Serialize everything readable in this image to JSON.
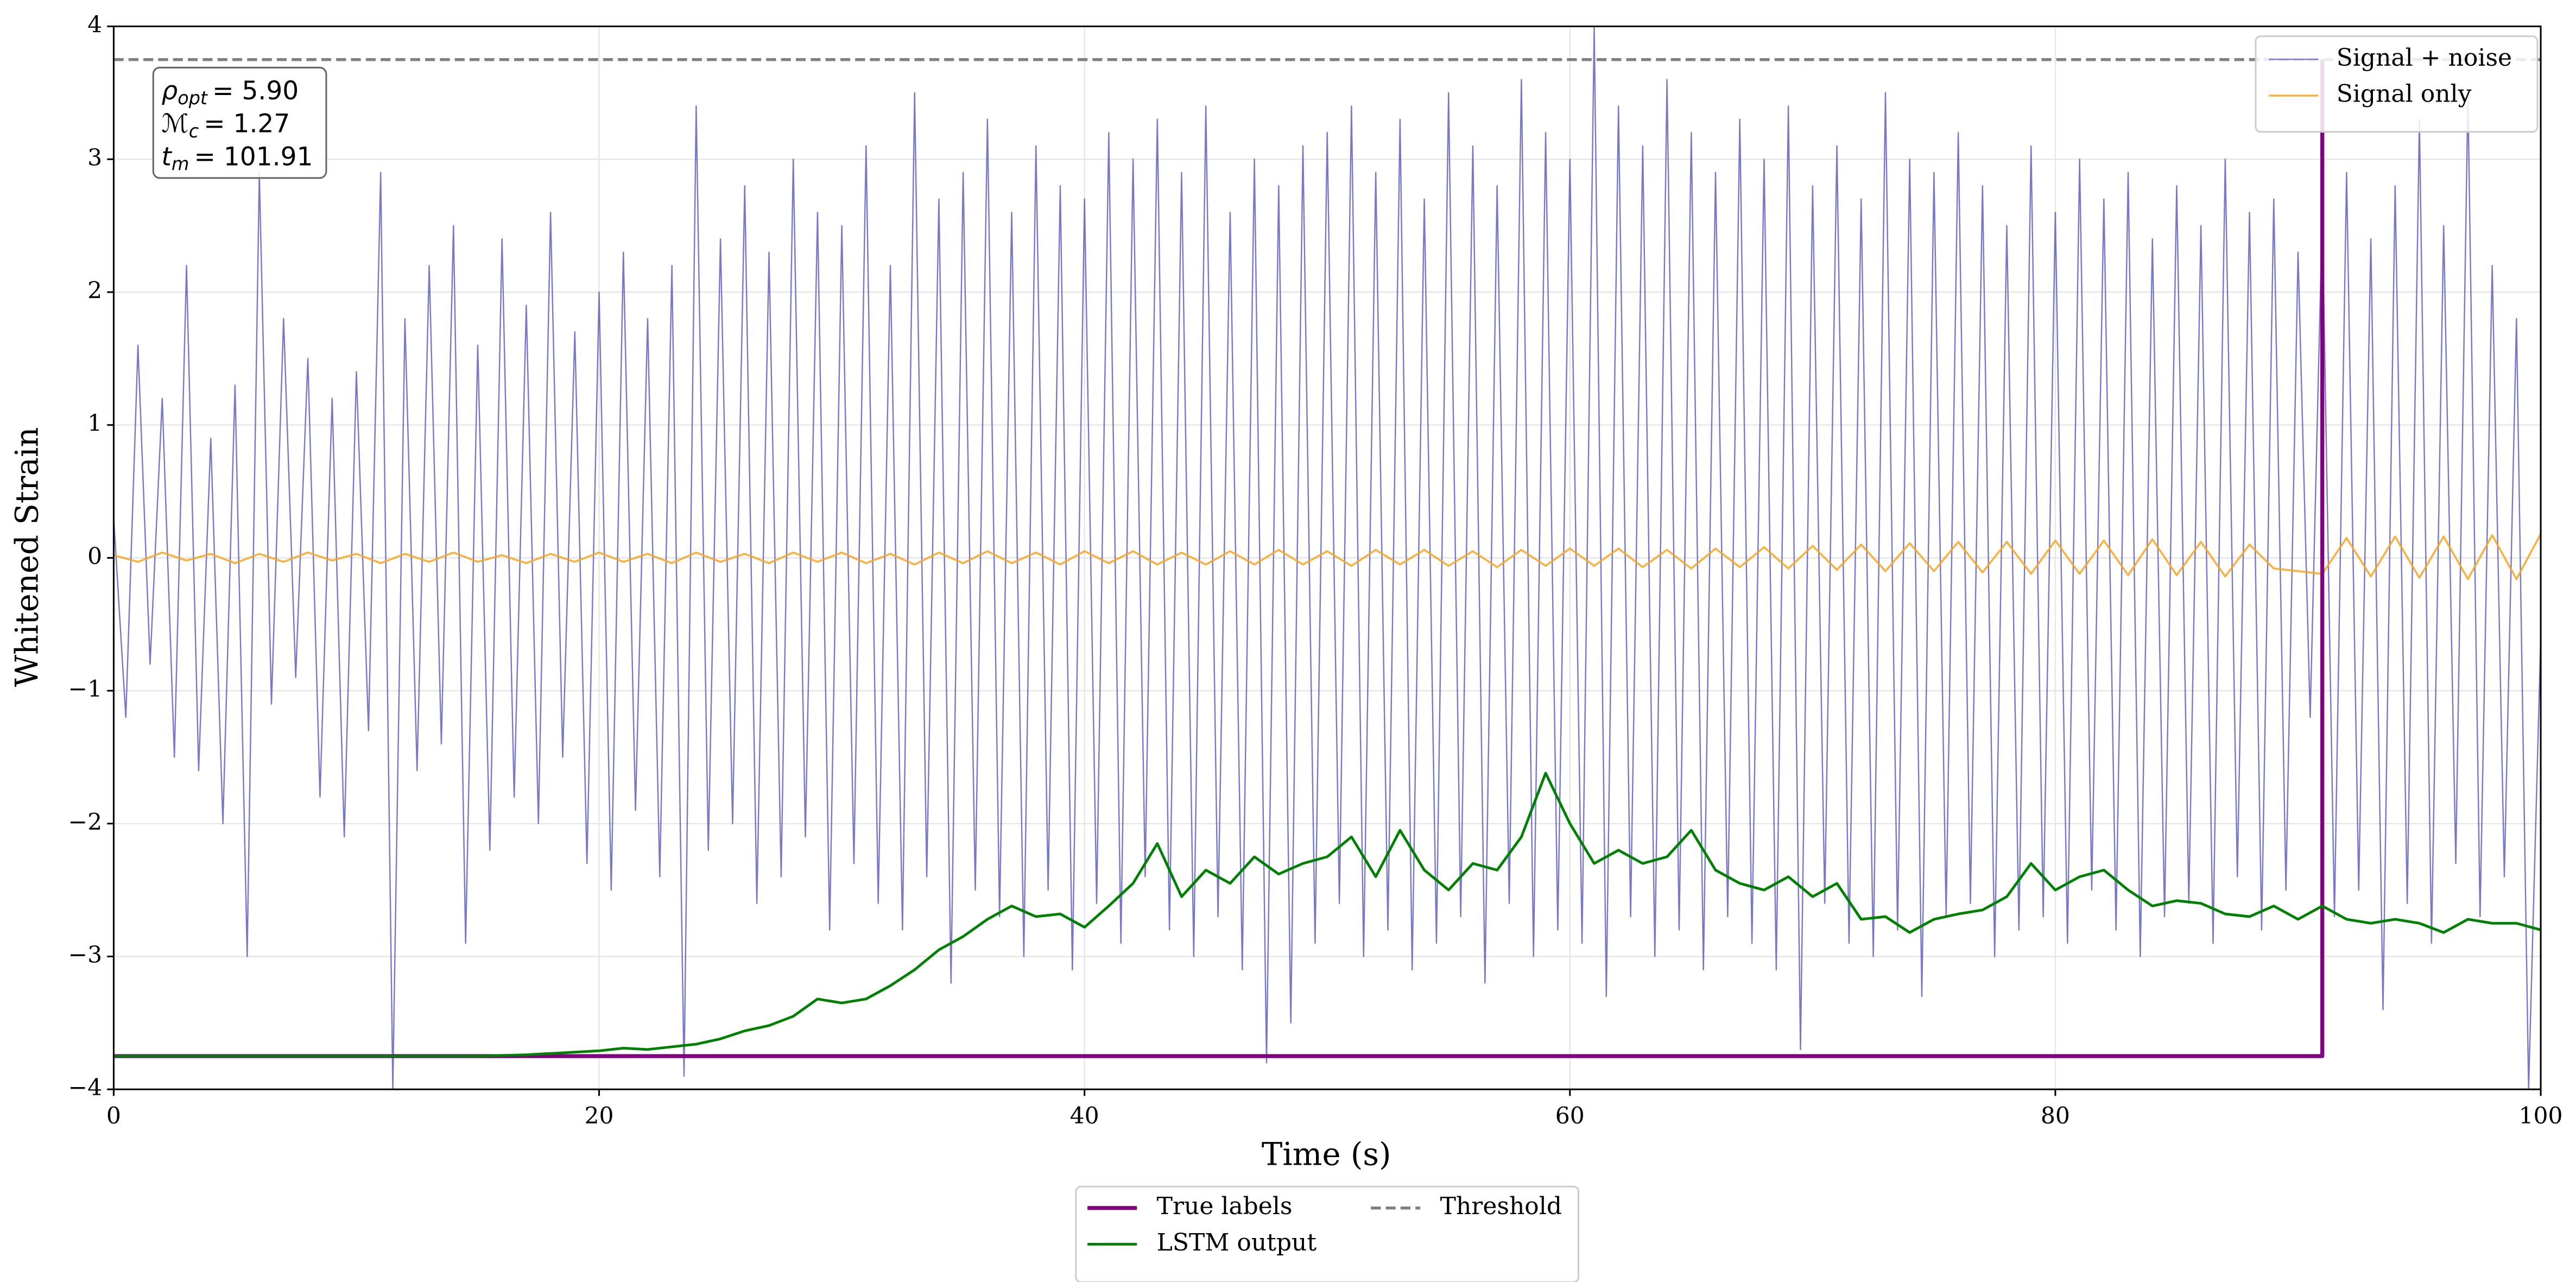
{
  "chart_data": {
    "type": "line",
    "xlabel": "Time (s)",
    "ylabel": "Whitened Strain",
    "xlim": [
      0,
      100
    ],
    "ylim": [
      -4,
      4
    ],
    "xticks": [
      0,
      20,
      40,
      60,
      80,
      100
    ],
    "yticks": [
      {
        "value": -4,
        "label": "−4"
      },
      {
        "value": -3,
        "label": "−3"
      },
      {
        "value": -2,
        "label": "−2"
      },
      {
        "value": -1,
        "label": "−1"
      },
      0,
      1,
      2,
      3,
      4
    ],
    "grid": true,
    "annotation": [
      {
        "symbol": "ρ",
        "subscript": "opt",
        "text": "= 5.90"
      },
      {
        "symbol": "ℳ",
        "subscript": "c",
        "text": "= 1.27"
      },
      {
        "symbol": "t",
        "subscript": "m",
        "text": "= 101.91"
      }
    ],
    "series": [
      {
        "name": "Signal + noise",
        "color": "#4b4bb4",
        "opacity": 0.75,
        "linewidth": 0.8,
        "linestyle": "solid",
        "legend": "upper right",
        "x": [
          0,
          0.5,
          1,
          1.5,
          2,
          2.5,
          3,
          3.5,
          4,
          4.5,
          5,
          5.5,
          6,
          6.5,
          7,
          7.5,
          8,
          8.5,
          9,
          9.5,
          10,
          10.5,
          11,
          11.5,
          12,
          12.5,
          13,
          13.5,
          14,
          14.5,
          15,
          15.5,
          16,
          16.5,
          17,
          17.5,
          18,
          18.5,
          19,
          19.5,
          20,
          20.5,
          21,
          21.5,
          22,
          22.5,
          23,
          23.5,
          24,
          24.5,
          25,
          25.5,
          26,
          26.5,
          27,
          27.5,
          28,
          28.5,
          29,
          29.5,
          30,
          30.5,
          31,
          31.5,
          32,
          32.5,
          33,
          33.5,
          34,
          34.5,
          35,
          35.5,
          36,
          36.5,
          37,
          37.5,
          38,
          38.5,
          39,
          39.5,
          40,
          40.5,
          41,
          41.5,
          42,
          42.5,
          43,
          43.5,
          44,
          44.5,
          45,
          45.5,
          46,
          46.5,
          47,
          47.5,
          48,
          48.5,
          49,
          49.5,
          50,
          50.5,
          51,
          51.5,
          52,
          52.5,
          53,
          53.5,
          54,
          54.5,
          55,
          55.5,
          56,
          56.5,
          57,
          57.5,
          58,
          58.5,
          59,
          59.5,
          60,
          60.5,
          61,
          61.5,
          62,
          62.5,
          63,
          63.5,
          64,
          64.5,
          65,
          65.5,
          66,
          66.5,
          67,
          67.5,
          68,
          68.5,
          69,
          69.5,
          70,
          70.5,
          71,
          71.5,
          72,
          72.5,
          73,
          73.5,
          74,
          74.5,
          75,
          75.5,
          76,
          76.5,
          77,
          77.5,
          78,
          78.5,
          79,
          79.5,
          80,
          80.5,
          81,
          81.5,
          82,
          82.5,
          83,
          83.5,
          84,
          84.5,
          85,
          85.5,
          86,
          86.5,
          87,
          87.5,
          88,
          88.5,
          89,
          89.5,
          90,
          90.5,
          91,
          91.5,
          92,
          92.5,
          93,
          93.5,
          94,
          94.5,
          95,
          95.5,
          96,
          96.5,
          97,
          97.5,
          98,
          98.5,
          99,
          99.5,
          100
        ],
        "values": [
          0.3,
          -1.2,
          1.6,
          -0.8,
          1.2,
          -1.5,
          2.2,
          -1.6,
          0.9,
          -2.0,
          1.3,
          -3.0,
          2.9,
          -1.1,
          1.8,
          -0.9,
          1.5,
          -1.8,
          1.2,
          -2.1,
          1.4,
          -1.3,
          2.9,
          -4.0,
          1.8,
          -1.6,
          2.2,
          -1.4,
          2.5,
          -2.9,
          1.6,
          -2.2,
          2.4,
          -1.8,
          1.9,
          -2.0,
          2.6,
          -1.5,
          1.7,
          -2.3,
          2.0,
          -2.5,
          2.3,
          -1.9,
          1.8,
          -2.4,
          2.2,
          -3.9,
          3.4,
          -2.2,
          2.4,
          -2.0,
          2.8,
          -2.6,
          2.3,
          -2.4,
          3.0,
          -2.1,
          2.6,
          -2.8,
          2.5,
          -2.3,
          3.1,
          -2.6,
          2.2,
          -2.8,
          3.5,
          -2.4,
          2.7,
          -3.2,
          2.9,
          -2.5,
          3.3,
          -2.7,
          2.6,
          -3.0,
          3.1,
          -2.5,
          2.8,
          -3.1,
          2.7,
          -2.6,
          3.2,
          -2.9,
          3.0,
          -2.4,
          3.3,
          -2.8,
          2.9,
          -3.0,
          3.4,
          -2.7,
          2.6,
          -3.1,
          3.0,
          -3.8,
          2.8,
          -3.5,
          3.1,
          -2.9,
          3.2,
          -2.6,
          3.4,
          -3.0,
          2.9,
          -2.8,
          3.3,
          -3.1,
          2.7,
          -2.9,
          3.5,
          -2.7,
          3.1,
          -3.2,
          2.8,
          -2.6,
          3.6,
          -3.0,
          3.2,
          -2.8,
          3.0,
          -2.9,
          4.0,
          -3.3,
          3.4,
          -2.7,
          3.1,
          -3.0,
          3.6,
          -2.8,
          3.2,
          -3.1,
          2.9,
          -2.7,
          3.3,
          -2.9,
          3.0,
          -3.1,
          3.4,
          -3.7,
          2.8,
          -2.6,
          3.1,
          -2.9,
          2.7,
          -3.0,
          3.5,
          -2.8,
          3.0,
          -3.3,
          2.9,
          -2.7,
          3.2,
          -2.6,
          2.8,
          -3.0,
          2.5,
          -2.8,
          3.1,
          -2.7,
          2.6,
          -2.9,
          3.0,
          -2.5,
          2.7,
          -2.8,
          2.9,
          -3.0,
          2.4,
          -2.7,
          2.8,
          -2.6,
          2.5,
          -2.9,
          3.0,
          -2.4,
          2.6,
          -2.8,
          2.7,
          -2.5,
          2.3,
          -1.2,
          2.6,
          -2.7,
          2.9,
          -2.5,
          2.4,
          -3.4,
          2.8,
          -2.6,
          3.3,
          -2.9,
          2.5,
          -2.3,
          3.5,
          -2.7,
          2.2,
          -2.4,
          1.8,
          -4.0,
          -0.6
        ]
      },
      {
        "name": "Signal only",
        "color": "#f5a623",
        "opacity": 0.85,
        "linewidth": 1.2,
        "linestyle": "solid",
        "legend": "upper right",
        "x": [
          0,
          1,
          2,
          3,
          4,
          5,
          6,
          7,
          8,
          9,
          10,
          11,
          12,
          13,
          14,
          15,
          16,
          17,
          18,
          19,
          20,
          21,
          22,
          23,
          24,
          25,
          26,
          27,
          28,
          29,
          30,
          31,
          32,
          33,
          34,
          35,
          36,
          37,
          38,
          39,
          40,
          41,
          42,
          43,
          44,
          45,
          46,
          47,
          48,
          49,
          50,
          51,
          52,
          53,
          54,
          55,
          56,
          57,
          58,
          59,
          60,
          61,
          62,
          63,
          64,
          65,
          66,
          67,
          68,
          69,
          70,
          71,
          72,
          73,
          74,
          75,
          76,
          77,
          78,
          79,
          80,
          81,
          82,
          83,
          84,
          85,
          86,
          87,
          88,
          89,
          90,
          91,
          92,
          93,
          94,
          95,
          96,
          97,
          98,
          99,
          100
        ],
        "values": [
          0.02,
          -0.03,
          0.04,
          -0.02,
          0.03,
          -0.04,
          0.03,
          -0.03,
          0.04,
          -0.02,
          0.03,
          -0.04,
          0.03,
          -0.03,
          0.04,
          -0.03,
          0.02,
          -0.04,
          0.03,
          -0.03,
          0.04,
          -0.03,
          0.03,
          -0.04,
          0.04,
          -0.03,
          0.03,
          -0.04,
          0.04,
          -0.03,
          0.04,
          -0.04,
          0.03,
          -0.05,
          0.04,
          -0.04,
          0.05,
          -0.04,
          0.04,
          -0.05,
          0.05,
          -0.04,
          0.05,
          -0.05,
          0.04,
          -0.05,
          0.05,
          -0.05,
          0.06,
          -0.05,
          0.05,
          -0.06,
          0.06,
          -0.05,
          0.06,
          -0.06,
          0.05,
          -0.07,
          0.06,
          -0.06,
          0.07,
          -0.06,
          0.07,
          -0.07,
          0.06,
          -0.08,
          0.07,
          -0.07,
          0.08,
          -0.08,
          0.09,
          -0.09,
          0.1,
          -0.1,
          0.11,
          -0.1,
          0.12,
          -0.11,
          0.12,
          -0.12,
          0.13,
          -0.12,
          0.13,
          -0.13,
          0.14,
          -0.13,
          0.12,
          -0.14,
          0.1,
          -0.08,
          -0.1,
          -0.12,
          0.15,
          -0.14,
          0.16,
          -0.15,
          0.16,
          -0.16,
          0.17,
          -0.16,
          0.18
        ]
      },
      {
        "name": "True labels",
        "color": "#800080",
        "opacity": 1,
        "linewidth": 2.4,
        "linestyle": "solid",
        "legend": "lower center",
        "x": [
          0,
          91,
          91
        ],
        "values": [
          -3.75,
          -3.75,
          3.75
        ]
      },
      {
        "name": "LSTM output",
        "color": "#008000",
        "opacity": 1,
        "linewidth": 1.6,
        "linestyle": "solid",
        "legend": "lower center",
        "x": [
          0,
          15,
          17,
          19,
          20,
          21,
          22,
          23,
          24,
          25,
          26,
          27,
          28,
          29,
          30,
          31,
          32,
          33,
          34,
          35,
          36,
          37,
          38,
          39,
          40,
          41,
          42,
          43,
          44,
          45,
          46,
          47,
          48,
          49,
          50,
          51,
          52,
          53,
          54,
          55,
          56,
          57,
          58,
          59,
          60,
          61,
          62,
          63,
          64,
          65,
          66,
          67,
          68,
          69,
          70,
          71,
          72,
          73,
          74,
          75,
          76,
          77,
          78,
          79,
          80,
          81,
          82,
          83,
          84,
          85,
          86,
          87,
          88,
          89,
          90,
          91,
          92,
          93,
          94,
          95,
          96,
          97,
          98,
          99,
          100
        ],
        "values": [
          -3.75,
          -3.75,
          -3.74,
          -3.72,
          -3.71,
          -3.69,
          -3.7,
          -3.68,
          -3.66,
          -3.62,
          -3.56,
          -3.52,
          -3.45,
          -3.32,
          -3.35,
          -3.32,
          -3.22,
          -3.1,
          -2.95,
          -2.85,
          -2.72,
          -2.62,
          -2.7,
          -2.68,
          -2.78,
          -2.62,
          -2.45,
          -2.15,
          -2.55,
          -2.35,
          -2.45,
          -2.25,
          -2.38,
          -2.3,
          -2.25,
          -2.1,
          -2.4,
          -2.05,
          -2.35,
          -2.5,
          -2.3,
          -2.35,
          -2.1,
          -1.62,
          -2.0,
          -2.3,
          -2.2,
          -2.3,
          -2.25,
          -2.05,
          -2.35,
          -2.45,
          -2.5,
          -2.4,
          -2.55,
          -2.45,
          -2.72,
          -2.7,
          -2.82,
          -2.72,
          -2.68,
          -2.65,
          -2.55,
          -2.3,
          -2.5,
          -2.4,
          -2.35,
          -2.5,
          -2.62,
          -2.58,
          -2.6,
          -2.68,
          -2.7,
          -2.62,
          -2.72,
          -2.62,
          -2.72,
          -2.75,
          -2.72,
          -2.75,
          -2.82,
          -2.72,
          -2.75,
          -2.75,
          -2.8
        ]
      },
      {
        "name": "Threshold",
        "color": "#808080",
        "opacity": 1,
        "linewidth": 1.8,
        "linestyle": "dashed",
        "legend": "lower center",
        "x": [
          0,
          100
        ],
        "values": [
          3.75,
          3.75
        ]
      }
    ]
  }
}
